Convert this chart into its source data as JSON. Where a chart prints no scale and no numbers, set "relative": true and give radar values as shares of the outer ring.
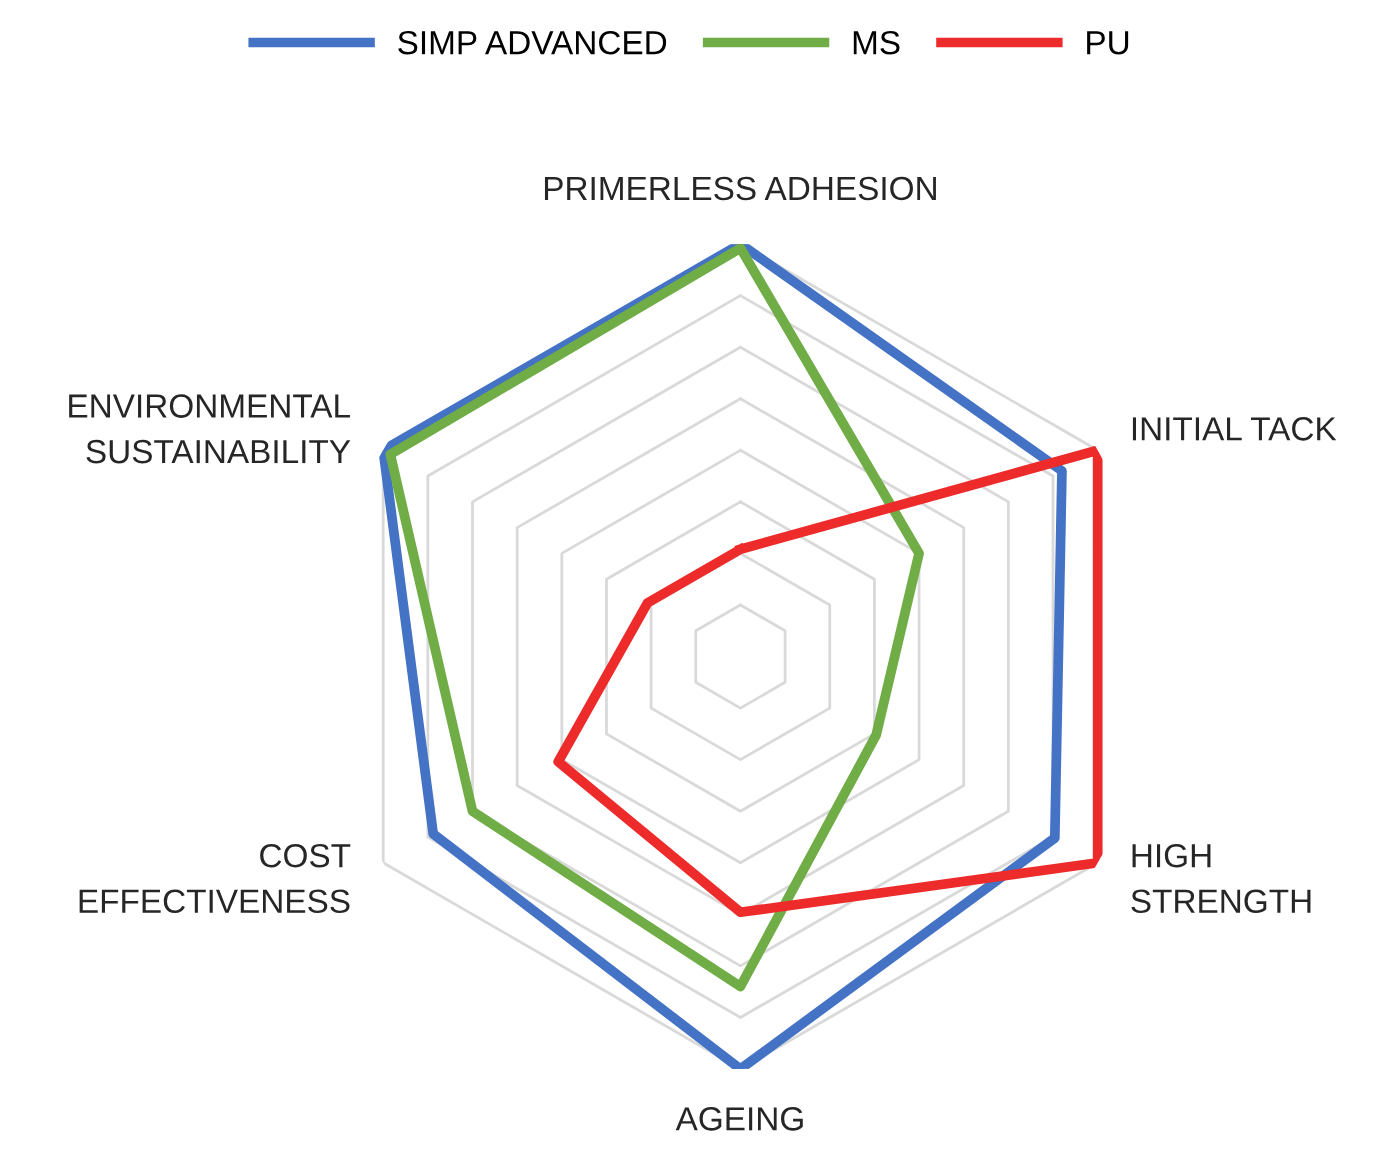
{
  "chart_data": {
    "type": "radar",
    "relative": true,
    "grid": true,
    "legend": "top",
    "marker": "none",
    "line_style": "solid",
    "categories": [
      "PRIMERLESS ADHESION",
      "INITIAL TACK",
      "HIGH\nSTRENGTH",
      "AGEING",
      "COST\nEFFECTIVENESS",
      "ENVIRONMENTAL\nSUSTAINABILITY"
    ],
    "series": [
      {
        "name": "SIMP ADVANCED",
        "color": "#4472c4",
        "values": [
          1.0,
          0.9,
          0.88,
          1.0,
          0.86,
          1.0
        ]
      },
      {
        "name": "MS",
        "color": "#70ad47",
        "values": [
          0.99,
          0.5,
          0.38,
          0.8,
          0.75,
          0.98
        ]
      },
      {
        "name": "PU",
        "color": "#ee2b2b",
        "values": [
          0.26,
          1.0,
          1.0,
          0.62,
          0.51,
          0.26
        ]
      }
    ]
  }
}
